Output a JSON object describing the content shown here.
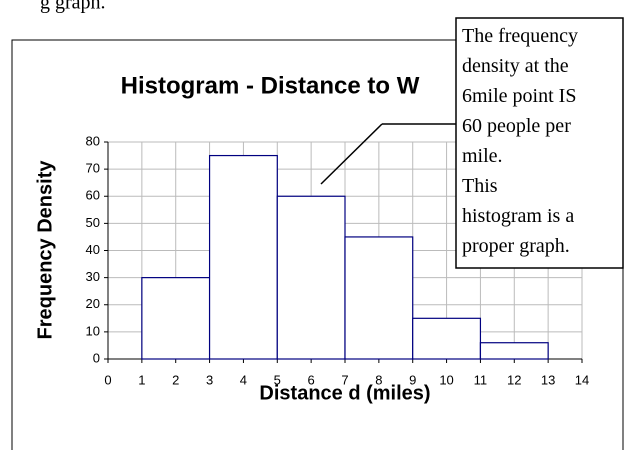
{
  "page_text": "g graph.",
  "chart_data": {
    "type": "histogram",
    "title": "Histogram - Distance to W",
    "xlabel": "Distance d (miles)",
    "ylabel": "Frequency Density",
    "bins": [
      1,
      3,
      5,
      7,
      9,
      11,
      13
    ],
    "values": [
      30,
      75,
      60,
      45,
      15,
      6
    ],
    "color": "#000080",
    "xlim": [
      0,
      14
    ],
    "xticks": [
      0,
      1,
      2,
      3,
      4,
      5,
      6,
      7,
      8,
      9,
      10,
      11,
      12,
      13,
      14
    ],
    "ylim": [
      0,
      80
    ],
    "yticks": [
      0,
      10,
      20,
      30,
      40,
      50,
      60,
      70,
      80
    ],
    "grid": true,
    "annotation": [
      "The frequency",
      "density at the",
      "6mile point IS",
      "60 people per",
      "mile.",
      "This",
      "histogram is a",
      "proper graph."
    ]
  }
}
